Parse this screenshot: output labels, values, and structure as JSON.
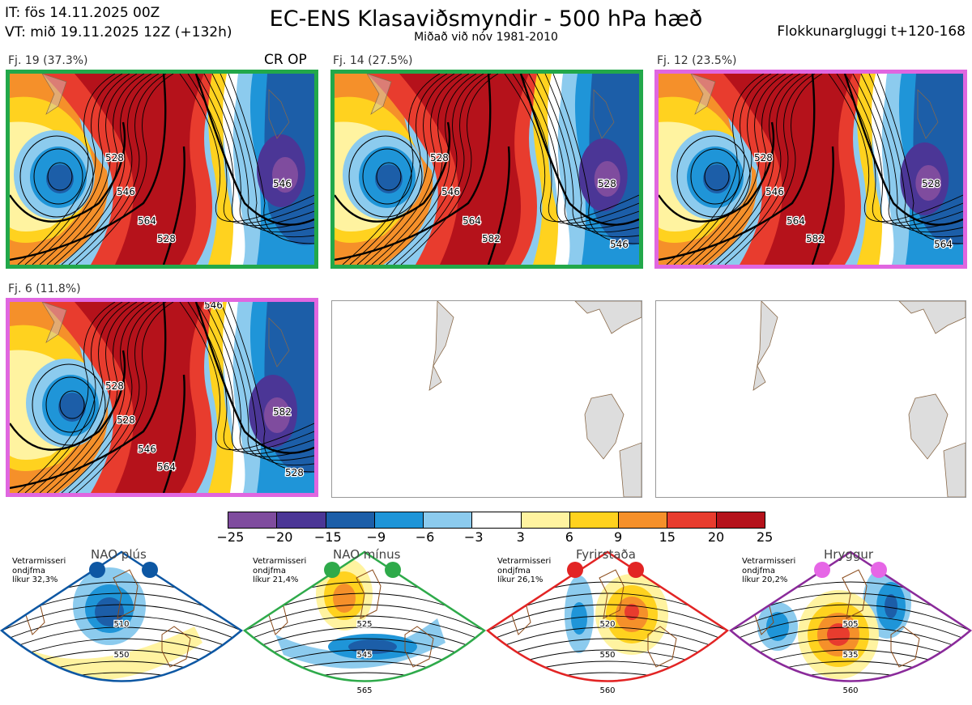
{
  "header": {
    "it": "IT: fös 14.11.2025 00Z",
    "vt": "VT: mið 19.11.2025 12Z  (+132h)",
    "title": "EC-ENS Klasaviðsmyndir - 500 hPa hæð",
    "subtitle": "Miðað við nóv 1981-2010",
    "window": "Flokkunargluggi t+120-168"
  },
  "clusters": [
    {
      "label": "Fj. 19 (37.3%)",
      "border": "#22a84a",
      "tag": "CR OP",
      "contours": [
        "528",
        "546",
        "564",
        "528",
        "546"
      ]
    },
    {
      "label": "Fj. 14 (27.5%)",
      "border": "#22a84a",
      "contours": [
        "528",
        "546",
        "564",
        "582",
        "528",
        "546"
      ]
    },
    {
      "label": "Fj. 12 (23.5%)",
      "border": "#e066e0",
      "contours": [
        "528",
        "546",
        "564",
        "582",
        "528",
        "564"
      ]
    },
    {
      "label": "Fj. 6 (11.8%)",
      "border": "#e066e0",
      "contours": [
        "528",
        "528",
        "546",
        "564",
        "582",
        "528",
        "546"
      ]
    }
  ],
  "colorbar": {
    "ticks": [
      "−25",
      "−20",
      "−15",
      "−9",
      "−6",
      "−3",
      "3",
      "6",
      "9",
      "15",
      "20",
      "25"
    ],
    "colors": [
      "#7f4c9e",
      "#4b3696",
      "#1c5ea8",
      "#1f95d8",
      "#8ccbee",
      "#ffffff",
      "#fff3a0",
      "#ffd21f",
      "#f5902a",
      "#e83c2e",
      "#b5121b"
    ]
  },
  "regimes": [
    {
      "name": "NAO plús",
      "info": [
        "Vetrarmisseri",
        "ondjfma",
        "líkur 32,3%"
      ],
      "color": "#0d57a3",
      "labels": [
        "510",
        "550"
      ]
    },
    {
      "name": "NAO mínus",
      "info": [
        "Vetrarmisseri",
        "ondjfma",
        "líkur 21,4%"
      ],
      "color": "#2eaa4a",
      "labels": [
        "525",
        "545",
        "565"
      ]
    },
    {
      "name": "Fyrirstaða",
      "info": [
        "Vetrarmisseri",
        "ondjfma",
        "líkur 26,1%"
      ],
      "color": "#e22424",
      "labels": [
        "520",
        "550",
        "560"
      ]
    },
    {
      "name": "Hryggur",
      "info": [
        "Vetrarmisseri",
        "ondjfma",
        "líkur 20,2%"
      ],
      "color": "#e666e6",
      "border": "#8a2a9a",
      "labels": [
        "505",
        "535",
        "560"
      ]
    }
  ]
}
